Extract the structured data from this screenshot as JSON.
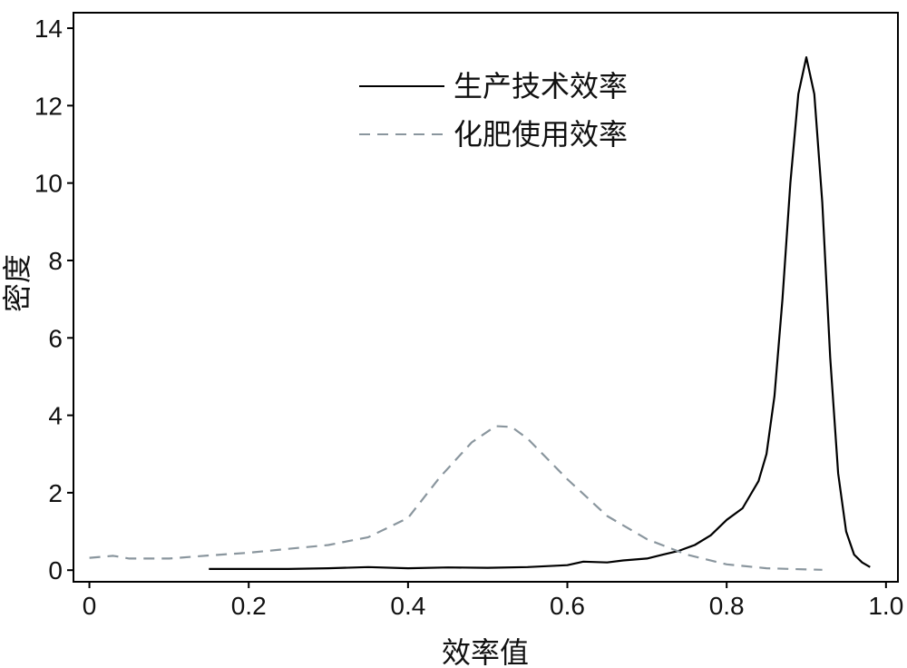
{
  "chart_data": {
    "type": "line",
    "xlabel": "效率值",
    "ylabel": "密度",
    "xlim": [
      -0.02,
      1.015
    ],
    "ylim": [
      -0.3,
      14.4
    ],
    "x_ticks": [
      {
        "value": 0,
        "label": "0"
      },
      {
        "value": 0.2,
        "label": "0.2"
      },
      {
        "value": 0.4,
        "label": "0.4"
      },
      {
        "value": 0.6,
        "label": "0.6"
      },
      {
        "value": 0.8,
        "label": "0.8"
      },
      {
        "value": 1.0,
        "label": "1.0"
      }
    ],
    "y_ticks": [
      {
        "value": 0,
        "label": "0"
      },
      {
        "value": 2,
        "label": "2"
      },
      {
        "value": 4,
        "label": "4"
      },
      {
        "value": 6,
        "label": "6"
      },
      {
        "value": 8,
        "label": "8"
      },
      {
        "value": 10,
        "label": "10"
      },
      {
        "value": 12,
        "label": "12"
      },
      {
        "value": 14,
        "label": "14"
      }
    ],
    "grid": false,
    "legend_position": "top-center",
    "series": [
      {
        "name": "生产技术效率",
        "color": "#000000",
        "dash": "solid",
        "points": [
          [
            0.15,
            0.03
          ],
          [
            0.2,
            0.03
          ],
          [
            0.25,
            0.03
          ],
          [
            0.3,
            0.05
          ],
          [
            0.35,
            0.08
          ],
          [
            0.4,
            0.05
          ],
          [
            0.45,
            0.07
          ],
          [
            0.5,
            0.06
          ],
          [
            0.55,
            0.08
          ],
          [
            0.6,
            0.13
          ],
          [
            0.62,
            0.22
          ],
          [
            0.65,
            0.2
          ],
          [
            0.67,
            0.25
          ],
          [
            0.7,
            0.3
          ],
          [
            0.72,
            0.4
          ],
          [
            0.74,
            0.5
          ],
          [
            0.76,
            0.65
          ],
          [
            0.78,
            0.9
          ],
          [
            0.8,
            1.3
          ],
          [
            0.82,
            1.6
          ],
          [
            0.84,
            2.3
          ],
          [
            0.85,
            3.0
          ],
          [
            0.86,
            4.5
          ],
          [
            0.87,
            7.0
          ],
          [
            0.88,
            10.0
          ],
          [
            0.89,
            12.3
          ],
          [
            0.9,
            13.25
          ],
          [
            0.91,
            12.3
          ],
          [
            0.92,
            9.5
          ],
          [
            0.93,
            5.5
          ],
          [
            0.94,
            2.5
          ],
          [
            0.95,
            1.0
          ],
          [
            0.96,
            0.4
          ],
          [
            0.97,
            0.2
          ],
          [
            0.98,
            0.08
          ]
        ]
      },
      {
        "name": "化肥使用效率",
        "color": "#8a969e",
        "dash": "dashed",
        "points": [
          [
            0.0,
            0.32
          ],
          [
            0.03,
            0.37
          ],
          [
            0.05,
            0.3
          ],
          [
            0.1,
            0.3
          ],
          [
            0.15,
            0.38
          ],
          [
            0.2,
            0.45
          ],
          [
            0.25,
            0.55
          ],
          [
            0.3,
            0.65
          ],
          [
            0.35,
            0.85
          ],
          [
            0.4,
            1.35
          ],
          [
            0.44,
            2.4
          ],
          [
            0.48,
            3.3
          ],
          [
            0.51,
            3.72
          ],
          [
            0.53,
            3.7
          ],
          [
            0.55,
            3.4
          ],
          [
            0.6,
            2.35
          ],
          [
            0.65,
            1.4
          ],
          [
            0.7,
            0.8
          ],
          [
            0.75,
            0.4
          ],
          [
            0.8,
            0.15
          ],
          [
            0.85,
            0.05
          ],
          [
            0.9,
            0.02
          ],
          [
            0.92,
            0.01
          ]
        ]
      }
    ]
  }
}
